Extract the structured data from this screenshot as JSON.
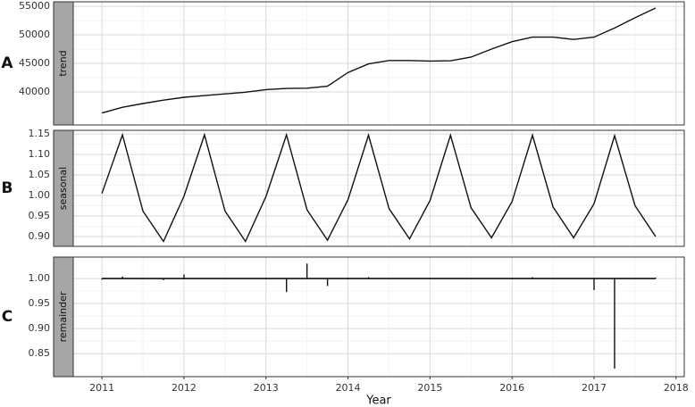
{
  "chart_data": [
    {
      "type": "line",
      "panel_label": "A",
      "strip": "trend",
      "color": "#111111",
      "grid": true,
      "x": [
        2011,
        2011.25,
        2011.5,
        2011.75,
        2012,
        2012.25,
        2012.5,
        2012.75,
        2013,
        2013.25,
        2013.5,
        2013.75,
        2014,
        2014.25,
        2014.5,
        2014.75,
        2015,
        2015.25,
        2015.5,
        2015.75,
        2016,
        2016.25,
        2016.5,
        2016.75,
        2017,
        2017.25,
        2017.5,
        2017.75
      ],
      "values": [
        36300,
        37300,
        37950,
        38550,
        39050,
        39350,
        39650,
        39950,
        40400,
        40600,
        40650,
        41000,
        43400,
        44900,
        45500,
        45500,
        45400,
        45450,
        46100,
        47500,
        48800,
        49600,
        49600,
        49200,
        49600,
        51200,
        53000,
        54700
      ],
      "xlim": [
        2010.65,
        2018.1
      ],
      "xticks": [
        2011,
        2012,
        2013,
        2014,
        2015,
        2016,
        2017,
        2018
      ],
      "ylim": [
        34200,
        55800
      ],
      "yticks": [
        40000,
        45000,
        50000,
        55000
      ]
    },
    {
      "type": "line",
      "panel_label": "B",
      "strip": "seasonal",
      "color": "#111111",
      "grid": true,
      "x": [
        2011,
        2011.25,
        2011.5,
        2011.75,
        2012,
        2012.25,
        2012.5,
        2012.75,
        2013,
        2013.25,
        2013.5,
        2013.75,
        2014,
        2014.25,
        2014.5,
        2014.75,
        2015,
        2015.25,
        2015.5,
        2015.75,
        2016,
        2016.25,
        2016.5,
        2016.75,
        2017,
        2017.25,
        2017.5,
        2017.75
      ],
      "values": [
        1.005,
        1.148,
        0.962,
        0.888,
        0.998,
        1.148,
        0.962,
        0.888,
        0.998,
        1.148,
        0.965,
        0.891,
        0.99,
        1.147,
        0.968,
        0.894,
        0.988,
        1.147,
        0.97,
        0.897,
        0.985,
        1.147,
        0.972,
        0.897,
        0.98,
        1.146,
        0.975,
        0.9
      ],
      "xlim": [
        2010.65,
        2018.1
      ],
      "xticks": [
        2011,
        2012,
        2013,
        2014,
        2015,
        2016,
        2017,
        2018
      ],
      "ylim": [
        0.876,
        1.159
      ],
      "yticks": [
        {
          "value": 0.9,
          "label": "0.90"
        },
        0.95,
        {
          "value": 1,
          "label": "1.00"
        },
        1.05,
        {
          "value": 1.1,
          "label": "1.10"
        },
        1.15
      ]
    },
    {
      "type": "segment",
      "panel_label": "C",
      "strip": "remainder",
      "color": "#111111",
      "grid": true,
      "hline": 1,
      "xlabel": "Year",
      "x": [
        2011,
        2011.25,
        2011.5,
        2011.75,
        2012,
        2012.25,
        2012.5,
        2012.75,
        2013,
        2013.25,
        2013.5,
        2013.75,
        2014,
        2014.25,
        2014.5,
        2014.75,
        2015,
        2015.25,
        2015.5,
        2015.75,
        2016,
        2016.25,
        2016.5,
        2016.75,
        2017,
        2017.25,
        2017.5,
        2017.75
      ],
      "values": [
        0.998,
        1.004,
        1.001,
        0.997,
        1.008,
        0.999,
        1.0,
        1.0,
        1.001,
        0.973,
        1.03,
        0.985,
        1.0,
        1.003,
        1.0,
        1.0,
        1.0,
        1.0,
        1.0,
        1.0,
        1.0,
        1.003,
        1.0,
        1.0,
        0.977,
        0.82,
        1.0,
        1.002
      ],
      "xlim": [
        2010.65,
        2018.1
      ],
      "xticks": [
        2011,
        2012,
        2013,
        2014,
        2015,
        2016,
        2017,
        2018
      ],
      "ylim": [
        0.804,
        1.043
      ],
      "yticks": [
        0.85,
        {
          "value": 0.9,
          "label": "0.90"
        },
        0.95,
        {
          "value": 1,
          "label": "1.00"
        }
      ]
    }
  ]
}
